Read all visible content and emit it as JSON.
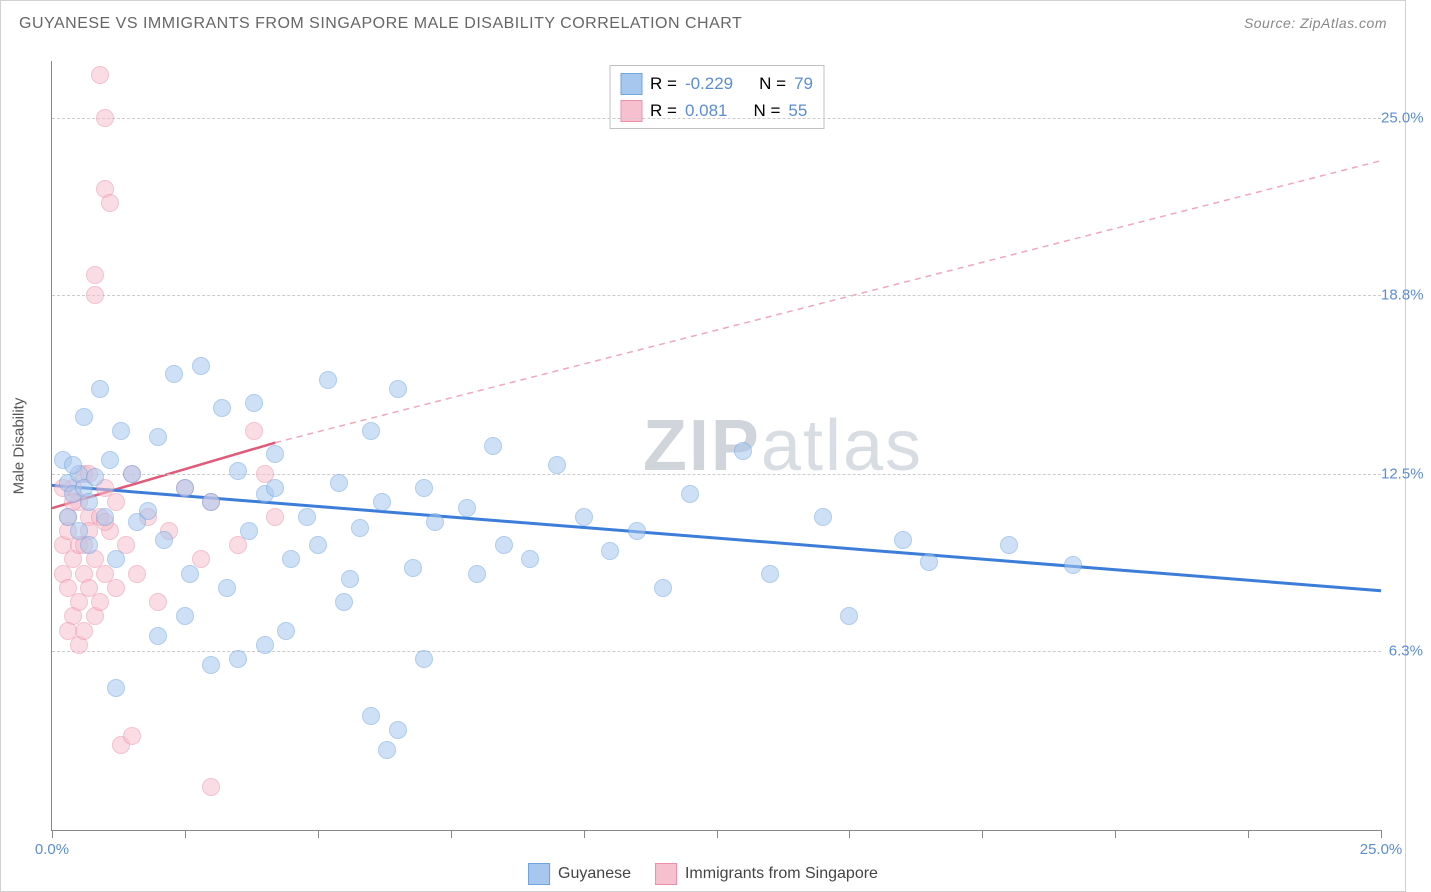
{
  "header": {
    "title": "GUYANESE VS IMMIGRANTS FROM SINGAPORE MALE DISABILITY CORRELATION CHART",
    "source": "Source: ZipAtlas.com"
  },
  "watermark": {
    "part1": "ZIP",
    "part2": "atlas"
  },
  "axes": {
    "y_label": "Male Disability",
    "x_min": 0,
    "x_max": 25,
    "y_min": 0,
    "y_max": 27,
    "y_ticks": [
      {
        "value": 6.3,
        "label": "6.3%"
      },
      {
        "value": 12.5,
        "label": "12.5%"
      },
      {
        "value": 18.8,
        "label": "18.8%"
      },
      {
        "value": 25.0,
        "label": "25.0%"
      }
    ],
    "x_ticks": [
      {
        "value": 0,
        "label": "0.0%"
      },
      {
        "value": 2.5,
        "label": ""
      },
      {
        "value": 5.0,
        "label": ""
      },
      {
        "value": 7.5,
        "label": ""
      },
      {
        "value": 10.0,
        "label": ""
      },
      {
        "value": 12.5,
        "label": ""
      },
      {
        "value": 15.0,
        "label": ""
      },
      {
        "value": 17.5,
        "label": ""
      },
      {
        "value": 20.0,
        "label": ""
      },
      {
        "value": 22.5,
        "label": ""
      },
      {
        "value": 25.0,
        "label": "25.0%"
      }
    ]
  },
  "series": {
    "blue": {
      "name": "Guyanese",
      "fill": "#a7c7ee",
      "stroke": "#6ea3e0",
      "fill_opacity": 0.55,
      "marker_size": 18,
      "R": "-0.229",
      "N": "79",
      "trend": {
        "x1": 0,
        "y1": 12.1,
        "x2": 25,
        "y2": 8.4,
        "color": "#3b7dd8",
        "width": 3,
        "dash": "none"
      },
      "extrap": null,
      "points": [
        [
          0.3,
          12.2
        ],
        [
          0.4,
          11.8
        ],
        [
          0.5,
          12.5
        ],
        [
          0.6,
          12.0
        ],
        [
          0.6,
          14.5
        ],
        [
          0.7,
          10.0
        ],
        [
          0.7,
          11.5
        ],
        [
          0.8,
          12.4
        ],
        [
          0.9,
          15.5
        ],
        [
          1.0,
          11.0
        ],
        [
          1.1,
          13.0
        ],
        [
          1.2,
          9.5
        ],
        [
          1.3,
          14.0
        ],
        [
          1.5,
          12.5
        ],
        [
          1.6,
          10.8
        ],
        [
          1.8,
          11.2
        ],
        [
          2.0,
          13.8
        ],
        [
          2.0,
          6.8
        ],
        [
          2.1,
          10.2
        ],
        [
          2.3,
          16.0
        ],
        [
          2.5,
          12.0
        ],
        [
          2.6,
          9.0
        ],
        [
          2.8,
          16.3
        ],
        [
          3.0,
          11.5
        ],
        [
          3.0,
          5.8
        ],
        [
          3.2,
          14.8
        ],
        [
          3.3,
          8.5
        ],
        [
          3.5,
          12.6
        ],
        [
          3.7,
          10.5
        ],
        [
          3.8,
          15.0
        ],
        [
          4.0,
          11.8
        ],
        [
          4.2,
          13.2
        ],
        [
          4.4,
          7.0
        ],
        [
          4.5,
          9.5
        ],
        [
          4.8,
          11.0
        ],
        [
          5.0,
          10.0
        ],
        [
          5.2,
          15.8
        ],
        [
          5.4,
          12.2
        ],
        [
          5.6,
          8.8
        ],
        [
          5.8,
          10.6
        ],
        [
          6.0,
          14.0
        ],
        [
          6.0,
          4.0
        ],
        [
          6.2,
          11.5
        ],
        [
          6.3,
          2.8
        ],
        [
          6.5,
          15.5
        ],
        [
          6.8,
          9.2
        ],
        [
          7.0,
          12.0
        ],
        [
          7.0,
          6.0
        ],
        [
          7.2,
          10.8
        ],
        [
          4.0,
          6.5
        ],
        [
          7.8,
          11.3
        ],
        [
          8.0,
          9.0
        ],
        [
          8.3,
          13.5
        ],
        [
          8.5,
          10.0
        ],
        [
          9.0,
          9.5
        ],
        [
          9.5,
          12.8
        ],
        [
          10.0,
          11.0
        ],
        [
          10.5,
          9.8
        ],
        [
          11.0,
          10.5
        ],
        [
          11.5,
          8.5
        ],
        [
          12.0,
          11.8
        ],
        [
          13.0,
          13.3
        ],
        [
          13.5,
          9.0
        ],
        [
          14.5,
          11.0
        ],
        [
          15.0,
          7.5
        ],
        [
          16.0,
          10.2
        ],
        [
          18.0,
          10.0
        ],
        [
          19.2,
          9.3
        ],
        [
          1.2,
          5.0
        ],
        [
          2.5,
          7.5
        ],
        [
          3.5,
          6.0
        ],
        [
          16.5,
          9.4
        ],
        [
          0.2,
          13.0
        ],
        [
          0.3,
          11.0
        ],
        [
          0.5,
          10.5
        ],
        [
          0.4,
          12.8
        ],
        [
          4.2,
          12.0
        ],
        [
          5.5,
          8.0
        ],
        [
          6.5,
          3.5
        ]
      ]
    },
    "pink": {
      "name": "Immigrants from Singapore",
      "fill": "#f7c0ce",
      "stroke": "#ec8fa8",
      "fill_opacity": 0.55,
      "marker_size": 18,
      "R": "0.081",
      "N": "55",
      "trend": {
        "x1": 0,
        "y1": 11.3,
        "x2": 4.2,
        "y2": 13.6,
        "color": "#e05a7a",
        "width": 2.5,
        "dash": "none"
      },
      "extrap": {
        "x1": 4.2,
        "y1": 13.6,
        "x2": 25,
        "y2": 23.5,
        "color": "#efa8b8",
        "width": 1.5,
        "dash": "6,5"
      },
      "points": [
        [
          0.2,
          10.0
        ],
        [
          0.2,
          9.0
        ],
        [
          0.3,
          11.0
        ],
        [
          0.3,
          8.5
        ],
        [
          0.3,
          10.5
        ],
        [
          0.4,
          12.0
        ],
        [
          0.4,
          9.5
        ],
        [
          0.4,
          7.5
        ],
        [
          0.5,
          11.5
        ],
        [
          0.5,
          8.0
        ],
        [
          0.5,
          10.0
        ],
        [
          0.5,
          6.5
        ],
        [
          0.6,
          12.5
        ],
        [
          0.6,
          9.0
        ],
        [
          0.6,
          7.0
        ],
        [
          0.7,
          11.0
        ],
        [
          0.7,
          8.5
        ],
        [
          0.7,
          10.5
        ],
        [
          0.8,
          18.8
        ],
        [
          0.8,
          9.5
        ],
        [
          0.8,
          7.5
        ],
        [
          0.8,
          19.5
        ],
        [
          0.9,
          26.5
        ],
        [
          0.9,
          11.0
        ],
        [
          0.9,
          8.0
        ],
        [
          1.0,
          25.0
        ],
        [
          1.0,
          12.0
        ],
        [
          1.0,
          9.0
        ],
        [
          1.0,
          22.5
        ],
        [
          1.1,
          22.0
        ],
        [
          1.1,
          10.5
        ],
        [
          1.2,
          11.5
        ],
        [
          1.2,
          8.5
        ],
        [
          1.3,
          3.0
        ],
        [
          1.4,
          10.0
        ],
        [
          1.5,
          12.5
        ],
        [
          1.5,
          3.3
        ],
        [
          1.6,
          9.0
        ],
        [
          1.8,
          11.0
        ],
        [
          2.0,
          8.0
        ],
        [
          2.2,
          10.5
        ],
        [
          2.5,
          12.0
        ],
        [
          2.8,
          9.5
        ],
        [
          3.0,
          11.5
        ],
        [
          3.0,
          1.5
        ],
        [
          3.5,
          10.0
        ],
        [
          3.8,
          14.0
        ],
        [
          4.0,
          12.5
        ],
        [
          4.2,
          11.0
        ],
        [
          0.2,
          12.0
        ],
        [
          0.3,
          7.0
        ],
        [
          0.4,
          11.5
        ],
        [
          0.6,
          10.0
        ],
        [
          0.7,
          12.5
        ],
        [
          1.0,
          10.8
        ]
      ]
    }
  },
  "legend_top": {
    "rows": [
      {
        "swatch_fill": "#a7c7ee",
        "swatch_stroke": "#6ea3e0",
        "r_label": "R =",
        "r_val": "-0.229",
        "n_label": "N =",
        "n_val": "79"
      },
      {
        "swatch_fill": "#f7c0ce",
        "swatch_stroke": "#ec8fa8",
        "r_label": "R =",
        "r_val": " 0.081",
        "n_label": "N =",
        "n_val": "55"
      }
    ]
  },
  "legend_bottom": {
    "items": [
      {
        "swatch_fill": "#a7c7ee",
        "swatch_stroke": "#6ea3e0",
        "label": "Guyanese"
      },
      {
        "swatch_fill": "#f7c0ce",
        "swatch_stroke": "#ec8fa8",
        "label": "Immigrants from Singapore"
      }
    ]
  },
  "colors": {
    "grid": "#cccccc",
    "axis": "#888888",
    "tick_text": "#5b8dd6",
    "background": "#ffffff"
  }
}
